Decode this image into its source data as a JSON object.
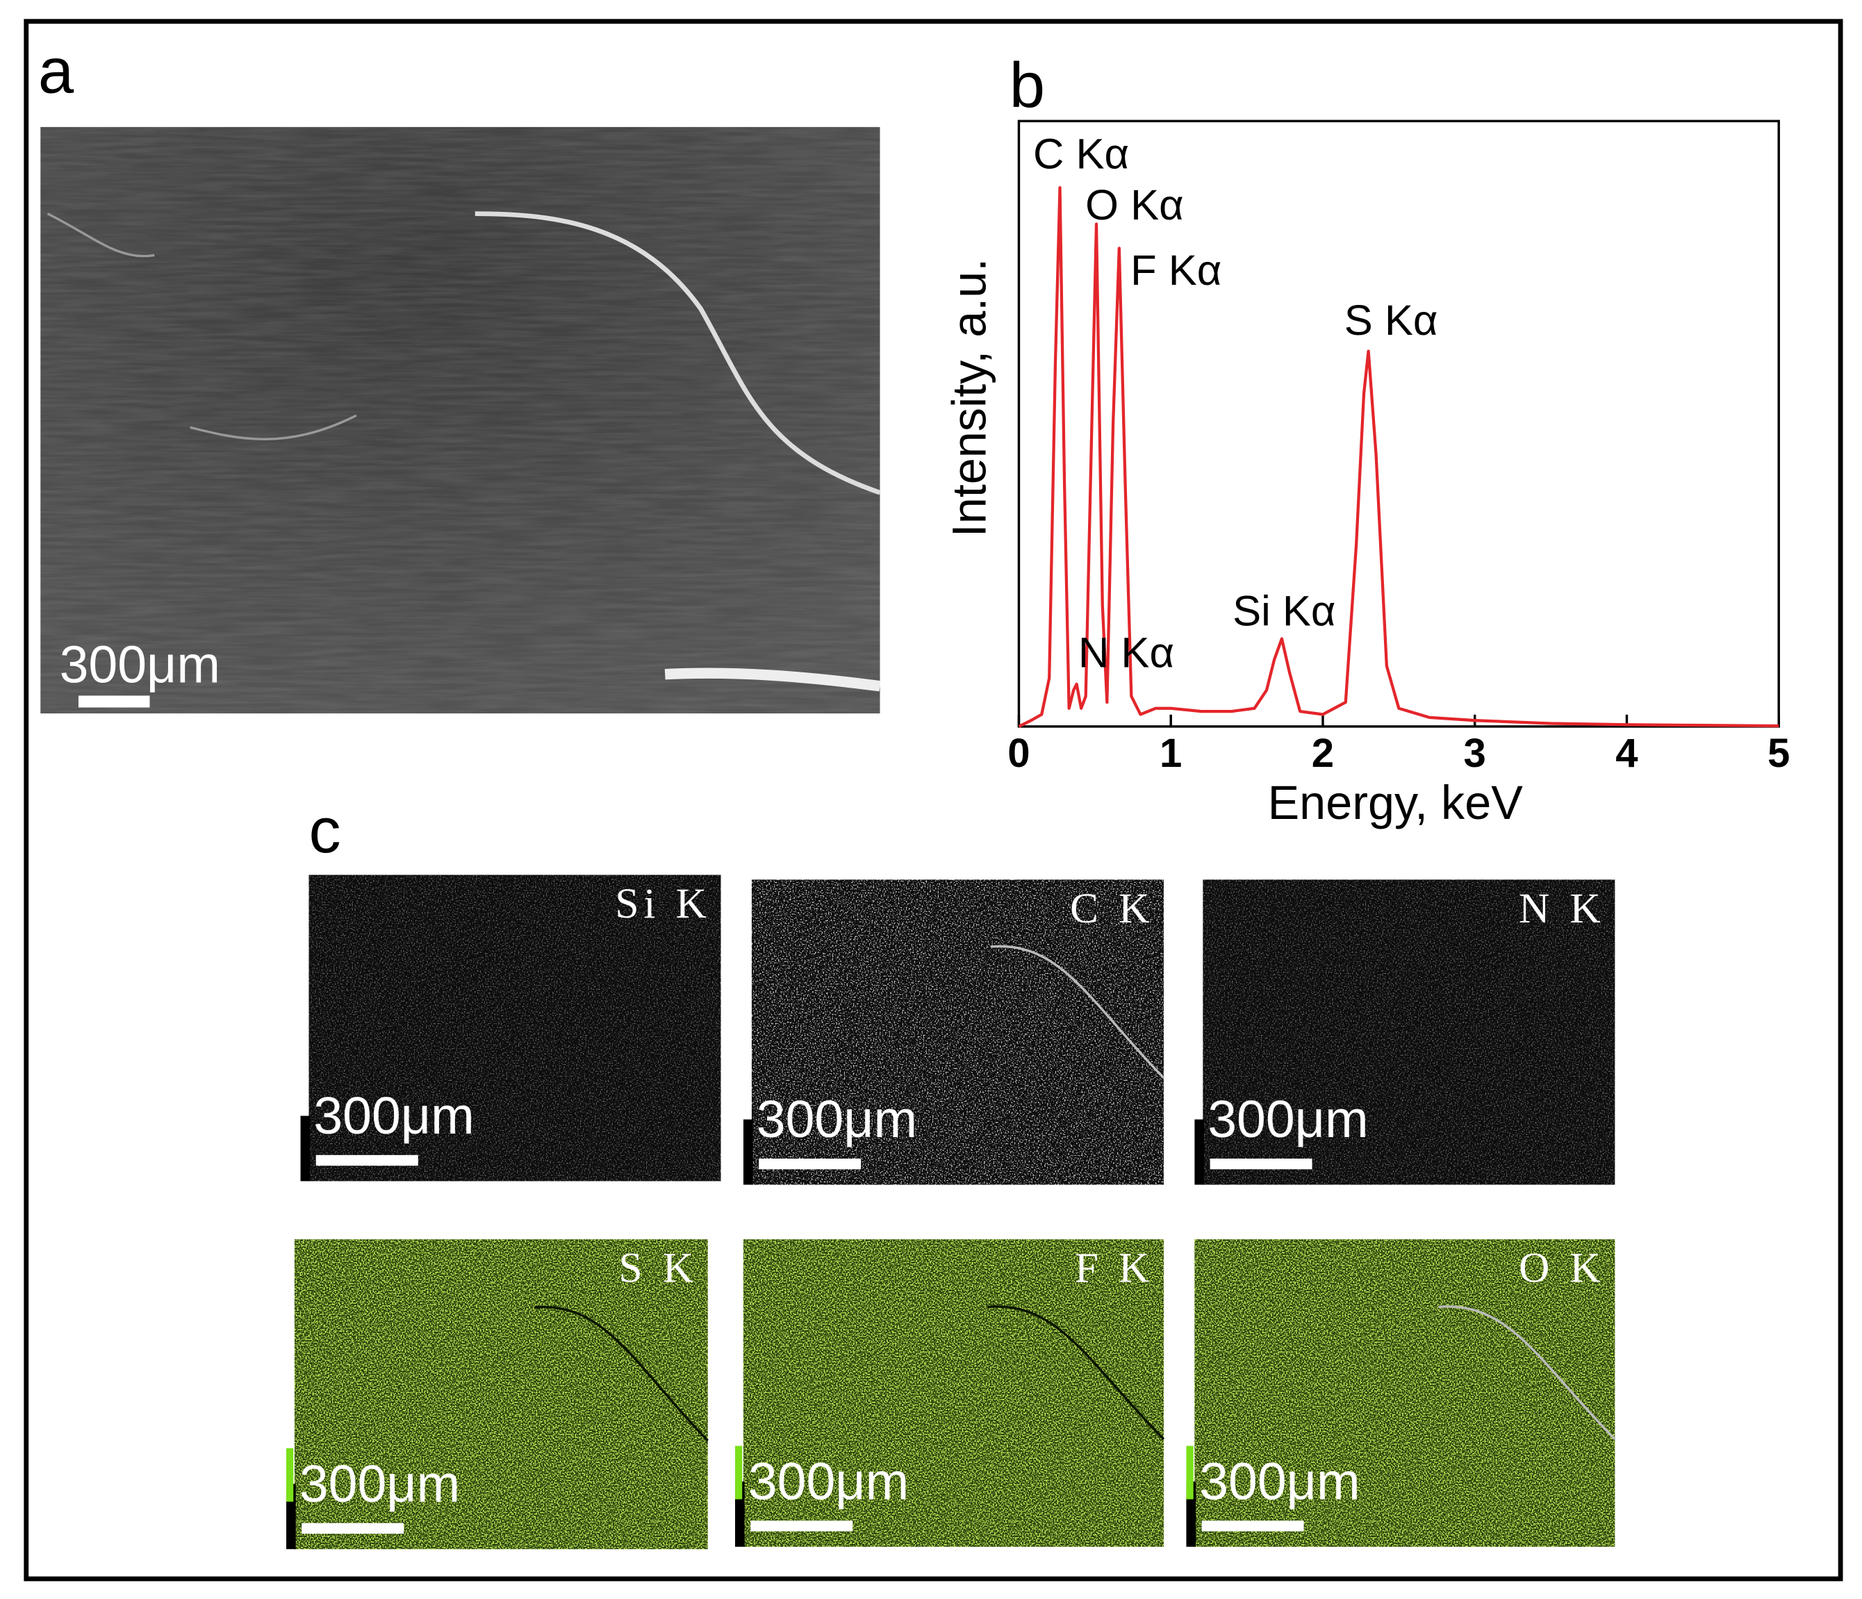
{
  "panels": {
    "a": {
      "label": "a",
      "scale_bar": "300μm"
    },
    "c": {
      "label": "c",
      "maps": [
        {
          "label": "Si K",
          "scale_bar": "300μm"
        },
        {
          "label": "C K",
          "scale_bar": "300μm"
        },
        {
          "label": "N K",
          "scale_bar": "300μm"
        },
        {
          "label": "S K",
          "scale_bar": "300μm"
        },
        {
          "label": "F K",
          "scale_bar": "300μm"
        },
        {
          "label": "O K",
          "scale_bar": "300μm"
        }
      ]
    }
  },
  "chart_data": {
    "type": "line",
    "panel_label": "b",
    "xlabel": "Energy, keV",
    "ylabel": "Intensity, a.u.",
    "xlim": [
      0,
      5
    ],
    "xticks": [
      0,
      1,
      2,
      3,
      4,
      5
    ],
    "ylim": [
      0,
      100
    ],
    "x": [
      0,
      0.08,
      0.15,
      0.2,
      0.24,
      0.27,
      0.3,
      0.33,
      0.36,
      0.38,
      0.41,
      0.44,
      0.48,
      0.51,
      0.55,
      0.58,
      0.62,
      0.66,
      0.7,
      0.74,
      0.8,
      0.9,
      1.0,
      1.2,
      1.4,
      1.55,
      1.63,
      1.68,
      1.73,
      1.78,
      1.85,
      2.0,
      2.15,
      2.22,
      2.27,
      2.3,
      2.35,
      2.42,
      2.5,
      2.7,
      3.0,
      3.5,
      4.0,
      4.5,
      5.0
    ],
    "series": [
      {
        "color": "#e3262b",
        "values": [
          0,
          1,
          2,
          8,
          60,
          89,
          40,
          3,
          6,
          7,
          3,
          5,
          50,
          83,
          20,
          4,
          50,
          79,
          40,
          5,
          2,
          3,
          3,
          2.5,
          2.5,
          3,
          6,
          11,
          14.5,
          9,
          2.5,
          2,
          4,
          30,
          55,
          62,
          45,
          10,
          3,
          1.5,
          1,
          0.5,
          0.3,
          0.2,
          0.1
        ]
      }
    ],
    "annotations": [
      {
        "text": "C Kα"
      },
      {
        "text": "O Kα"
      },
      {
        "text": "F Kα"
      },
      {
        "text": "N Kα"
      },
      {
        "text": "Si Kα"
      },
      {
        "text": "S Kα"
      }
    ]
  }
}
